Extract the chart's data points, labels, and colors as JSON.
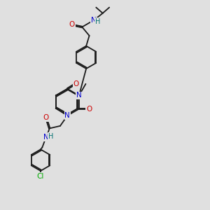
{
  "bg_color": "#e0e0e0",
  "bond_color": "#1a1a1a",
  "N_color": "#0000cc",
  "O_color": "#cc0000",
  "Cl_color": "#00aa00",
  "H_color": "#007070",
  "lw": 1.3,
  "fs": 7.5,
  "xlim": [
    0,
    10
  ],
  "ylim": [
    0,
    10
  ]
}
